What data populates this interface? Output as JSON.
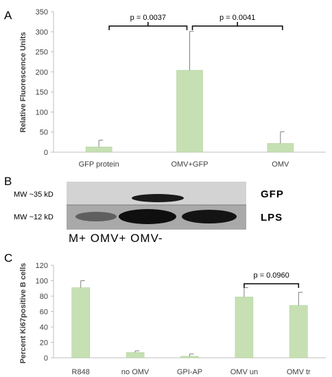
{
  "panels": {
    "a": "A",
    "b": "B",
    "c": "C"
  },
  "blot": {
    "mw_gfp": "MW  ~35 kD",
    "mw_lps": "MW  ~12 kD",
    "band_gfp": "GFP",
    "band_lps": "LPS",
    "lanes_label": "M+ OMV+ OMV-"
  },
  "colors": {
    "bar": "#c6e0b4",
    "bar_stroke": "#a9cd92",
    "axis": "#bfbfbf",
    "error": "#7f7f7f",
    "bracket": "#000000"
  },
  "chart_data": [
    {
      "panel": "A",
      "type": "bar",
      "ylabel": "Relative Fluorescence Units",
      "categories": [
        "GFP protein",
        "OMV+GFP",
        "OMV"
      ],
      "values": [
        13,
        204,
        22
      ],
      "errors": [
        17,
        97,
        29
      ],
      "ylim": [
        0,
        350
      ],
      "yticks": [
        0,
        50,
        100,
        150,
        200,
        250,
        300,
        350
      ],
      "grid": false,
      "annotations": [
        {
          "text": "p = 0.0037",
          "from": "GFP protein",
          "to": "OMV+GFP"
        },
        {
          "text": "p = 0.0041",
          "from": "OMV+GFP",
          "to": "OMV"
        }
      ]
    },
    {
      "panel": "C",
      "type": "bar",
      "ylabel": "Percent Ki67positive B cells",
      "categories": [
        "R848",
        "no OMV",
        "GPI-AP",
        "OMV un",
        "OMV tr"
      ],
      "values": [
        91,
        7,
        2,
        79,
        68
      ],
      "errors": [
        9,
        2,
        3,
        12,
        17
      ],
      "ylim": [
        0,
        120
      ],
      "yticks": [
        0,
        20,
        40,
        60,
        80,
        100,
        120
      ],
      "grid": false,
      "annotations": [
        {
          "text": "p = 0.0960",
          "from": "OMV un",
          "to": "OMV tr"
        }
      ]
    }
  ]
}
